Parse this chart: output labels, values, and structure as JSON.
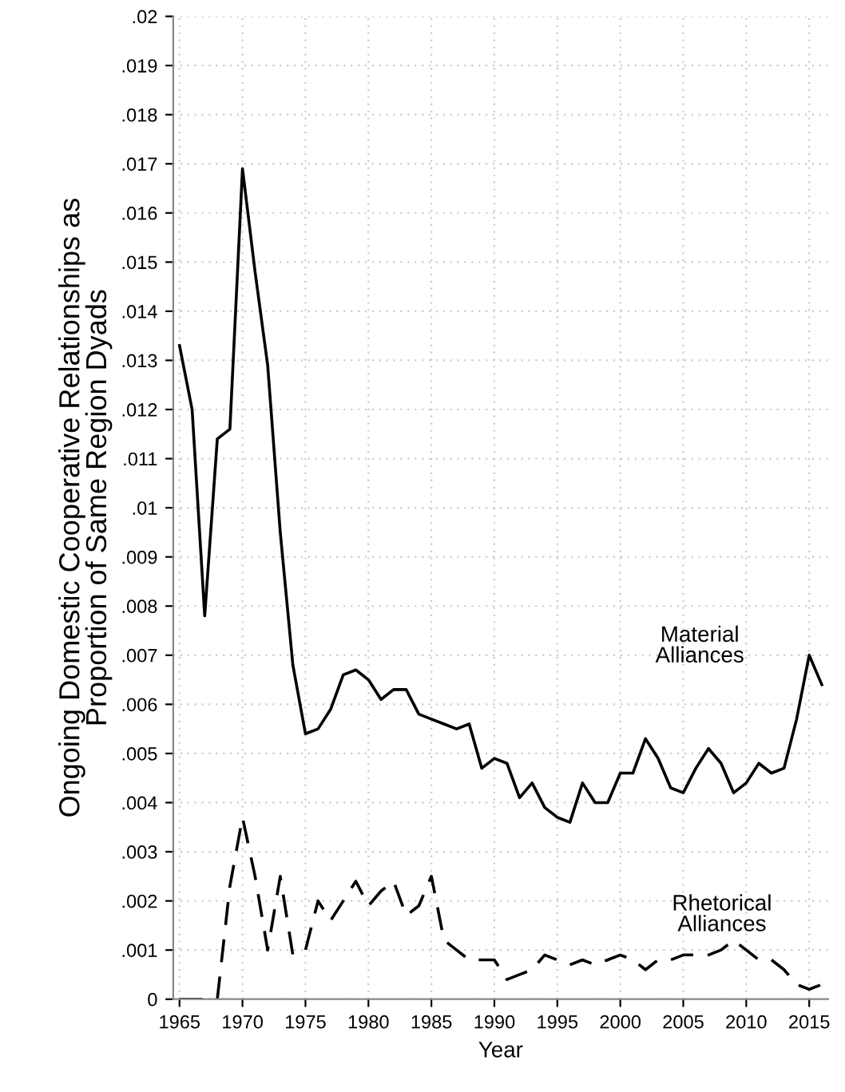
{
  "chart_data": {
    "type": "line",
    "xlabel": "Year",
    "ylabel": "Ongoing Domestic Cooperative Relationships as\nProportion of Same Region Dyads",
    "x": [
      1965,
      1966,
      1967,
      1968,
      1969,
      1970,
      1971,
      1972,
      1973,
      1974,
      1975,
      1976,
      1977,
      1978,
      1979,
      1980,
      1981,
      1982,
      1983,
      1984,
      1985,
      1986,
      1987,
      1988,
      1989,
      1990,
      1991,
      1992,
      1993,
      1994,
      1995,
      1996,
      1997,
      1998,
      1999,
      2000,
      2001,
      2002,
      2003,
      2004,
      2005,
      2006,
      2007,
      2008,
      2009,
      2010,
      2011,
      2012,
      2013,
      2014,
      2015,
      2016
    ],
    "series": [
      {
        "name": "Material\nAlliances",
        "color": "#000000",
        "line_style": "solid",
        "values": [
          0.0133,
          0.012,
          0.0078,
          0.0114,
          0.0116,
          0.0169,
          0.0148,
          0.0129,
          0.0095,
          0.0068,
          0.0054,
          0.0055,
          0.0059,
          0.0066,
          0.0067,
          0.0065,
          0.0061,
          0.0063,
          0.0063,
          0.0058,
          0.0057,
          0.0056,
          0.0055,
          0.0056,
          0.0047,
          0.0049,
          0.0048,
          0.0041,
          0.0044,
          0.0039,
          0.0037,
          0.0036,
          0.0044,
          0.004,
          0.004,
          0.0046,
          0.0046,
          0.0053,
          0.0049,
          0.0043,
          0.0042,
          0.0047,
          0.0051,
          0.0048,
          0.0042,
          0.0044,
          0.0048,
          0.0046,
          0.0047,
          0.0057,
          0.007,
          0.0064
        ]
      },
      {
        "name": "Rhetorical\nAlliances",
        "color": "#000000",
        "line_style": "dashed",
        "values": [
          0,
          0,
          0,
          0,
          0.0023,
          0.0037,
          0.0025,
          0.001,
          0.0025,
          0.0009,
          0.001,
          0.002,
          0.0016,
          0.002,
          0.0024,
          0.0019,
          0.0022,
          0.0024,
          0.0017,
          0.0019,
          0.0025,
          0.0012,
          0.001,
          0.0008,
          0.0008,
          0.0008,
          0.0004,
          0.0005,
          0.0006,
          0.0009,
          0.0008,
          0.0007,
          0.0008,
          0.0007,
          0.0008,
          0.0009,
          0.0008,
          0.0006,
          0.0008,
          0.0008,
          0.0009,
          0.0009,
          0.0009,
          0.001,
          0.0012,
          0.001,
          0.0008,
          0.0008,
          0.0006,
          0.0003,
          0.0002,
          0.0003
        ]
      }
    ],
    "xlim": [
      1964.5,
      2016.5
    ],
    "xticks": [
      1965,
      1970,
      1975,
      1980,
      1985,
      1990,
      1995,
      2000,
      2005,
      2010,
      2015
    ],
    "ylim": [
      0,
      0.02
    ],
    "yticks": [
      0,
      {
        "value": 0.001,
        "label": ".001"
      },
      {
        "value": 0.002,
        "label": ".002"
      },
      {
        "value": 0.003,
        "label": ".003"
      },
      {
        "value": 0.004,
        "label": ".004"
      },
      {
        "value": 0.005,
        "label": ".005"
      },
      {
        "value": 0.006,
        "label": ".006"
      },
      {
        "value": 0.007,
        "label": ".007"
      },
      {
        "value": 0.008,
        "label": ".008"
      },
      {
        "value": 0.009,
        "label": ".009"
      },
      {
        "value": 0.01,
        "label": ".01"
      },
      {
        "value": 0.011,
        "label": ".011"
      },
      {
        "value": 0.012,
        "label": ".012"
      },
      {
        "value": 0.013,
        "label": ".013"
      },
      {
        "value": 0.014,
        "label": ".014"
      },
      {
        "value": 0.015,
        "label": ".015"
      },
      {
        "value": 0.016,
        "label": ".016"
      },
      {
        "value": 0.017,
        "label": ".017"
      },
      {
        "value": 0.018,
        "label": ".018"
      },
      {
        "value": 0.019,
        "label": ".019"
      },
      {
        "value": 0.02,
        "label": ".02"
      }
    ],
    "grid": true,
    "legend": false
  }
}
